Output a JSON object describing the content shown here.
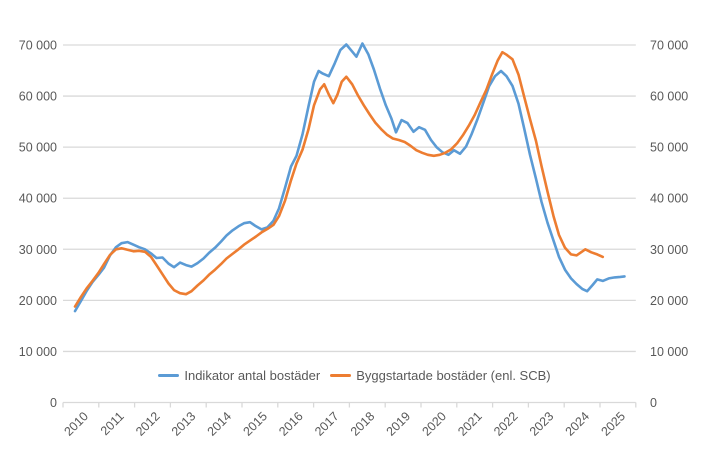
{
  "chart_data": {
    "type": "line",
    "title": "",
    "xlabel": "",
    "ylabel": "",
    "grid": true,
    "legend_position": "bottom",
    "background": "#ffffff",
    "x_axis": {
      "categories": [
        "2010",
        "2011",
        "2012",
        "2013",
        "2014",
        "2015",
        "2016",
        "2017",
        "2018",
        "2019",
        "2020",
        "2021",
        "2022",
        "2023",
        "2024",
        "2025"
      ],
      "label_rotation": -45
    },
    "y_axis": {
      "min": 0,
      "max": 70000,
      "step": 10000,
      "tick_labels": [
        "0",
        "10 000",
        "20 000",
        "30 000",
        "40 000",
        "50 000",
        "60 000",
        "70 000"
      ],
      "sides": [
        "left",
        "right"
      ]
    },
    "series": [
      {
        "name": "Indikator antal bostäder",
        "color": "#5B9BD5",
        "points": [
          [
            2010.0,
            17900
          ],
          [
            2010.17,
            19900
          ],
          [
            2010.33,
            21800
          ],
          [
            2010.5,
            23600
          ],
          [
            2010.67,
            25000
          ],
          [
            2010.83,
            26400
          ],
          [
            2011.0,
            28800
          ],
          [
            2011.17,
            30400
          ],
          [
            2011.33,
            31200
          ],
          [
            2011.5,
            31400
          ],
          [
            2011.67,
            30900
          ],
          [
            2011.83,
            30400
          ],
          [
            2012.0,
            30000
          ],
          [
            2012.17,
            29200
          ],
          [
            2012.33,
            28300
          ],
          [
            2012.5,
            28400
          ],
          [
            2012.67,
            27200
          ],
          [
            2012.83,
            26500
          ],
          [
            2013.0,
            27400
          ],
          [
            2013.17,
            26900
          ],
          [
            2013.33,
            26600
          ],
          [
            2013.5,
            27300
          ],
          [
            2013.67,
            28200
          ],
          [
            2013.83,
            29300
          ],
          [
            2014.0,
            30300
          ],
          [
            2014.17,
            31500
          ],
          [
            2014.33,
            32700
          ],
          [
            2014.5,
            33700
          ],
          [
            2014.67,
            34500
          ],
          [
            2014.83,
            35100
          ],
          [
            2015.0,
            35300
          ],
          [
            2015.17,
            34500
          ],
          [
            2015.33,
            33900
          ],
          [
            2015.5,
            34300
          ],
          [
            2015.67,
            35600
          ],
          [
            2015.83,
            38000
          ],
          [
            2016.0,
            42000
          ],
          [
            2016.17,
            46200
          ],
          [
            2016.33,
            48300
          ],
          [
            2016.5,
            52500
          ],
          [
            2016.67,
            58000
          ],
          [
            2016.83,
            62800
          ],
          [
            2016.96,
            64900
          ],
          [
            2017.08,
            64400
          ],
          [
            2017.25,
            63900
          ],
          [
            2017.42,
            66400
          ],
          [
            2017.58,
            69000
          ],
          [
            2017.75,
            70100
          ],
          [
            2017.92,
            68700
          ],
          [
            2018.04,
            67700
          ],
          [
            2018.21,
            70300
          ],
          [
            2018.38,
            68200
          ],
          [
            2018.54,
            65200
          ],
          [
            2018.71,
            61500
          ],
          [
            2018.88,
            58200
          ],
          [
            2019.04,
            55600
          ],
          [
            2019.17,
            52900
          ],
          [
            2019.33,
            55300
          ],
          [
            2019.5,
            54700
          ],
          [
            2019.67,
            53000
          ],
          [
            2019.83,
            53900
          ],
          [
            2020.0,
            53400
          ],
          [
            2020.17,
            51400
          ],
          [
            2020.33,
            50000
          ],
          [
            2020.5,
            49000
          ],
          [
            2020.67,
            48500
          ],
          [
            2020.83,
            49400
          ],
          [
            2021.0,
            48700
          ],
          [
            2021.17,
            50100
          ],
          [
            2021.33,
            52500
          ],
          [
            2021.5,
            55500
          ],
          [
            2021.67,
            58800
          ],
          [
            2021.83,
            61900
          ],
          [
            2022.0,
            63900
          ],
          [
            2022.17,
            64900
          ],
          [
            2022.33,
            63900
          ],
          [
            2022.5,
            62000
          ],
          [
            2022.67,
            58500
          ],
          [
            2022.83,
            53800
          ],
          [
            2023.0,
            48500
          ],
          [
            2023.17,
            43800
          ],
          [
            2023.33,
            39300
          ],
          [
            2023.5,
            35200
          ],
          [
            2023.67,
            31700
          ],
          [
            2023.83,
            28500
          ],
          [
            2024.0,
            26000
          ],
          [
            2024.17,
            24300
          ],
          [
            2024.33,
            23200
          ],
          [
            2024.5,
            22200
          ],
          [
            2024.63,
            21800
          ],
          [
            2024.79,
            23000
          ],
          [
            2024.92,
            24100
          ],
          [
            2025.08,
            23800
          ],
          [
            2025.25,
            24300
          ],
          [
            2025.42,
            24500
          ],
          [
            2025.58,
            24600
          ],
          [
            2025.7,
            24700
          ]
        ]
      },
      {
        "name": "Byggstartade bostäder (enl. SCB)",
        "color": "#ED7D31",
        "points": [
          [
            2010.0,
            18800
          ],
          [
            2010.17,
            20700
          ],
          [
            2010.33,
            22300
          ],
          [
            2010.5,
            23800
          ],
          [
            2010.67,
            25400
          ],
          [
            2010.83,
            27100
          ],
          [
            2011.0,
            28900
          ],
          [
            2011.17,
            30000
          ],
          [
            2011.33,
            30200
          ],
          [
            2011.5,
            29900
          ],
          [
            2011.67,
            29600
          ],
          [
            2011.83,
            29700
          ],
          [
            2012.0,
            29500
          ],
          [
            2012.17,
            28500
          ],
          [
            2012.33,
            26900
          ],
          [
            2012.5,
            25100
          ],
          [
            2012.67,
            23300
          ],
          [
            2012.83,
            22000
          ],
          [
            2013.0,
            21400
          ],
          [
            2013.17,
            21200
          ],
          [
            2013.33,
            21800
          ],
          [
            2013.5,
            22900
          ],
          [
            2013.67,
            23900
          ],
          [
            2013.83,
            25000
          ],
          [
            2014.0,
            26000
          ],
          [
            2014.17,
            27100
          ],
          [
            2014.33,
            28200
          ],
          [
            2014.5,
            29100
          ],
          [
            2014.67,
            30000
          ],
          [
            2014.83,
            30900
          ],
          [
            2015.0,
            31700
          ],
          [
            2015.17,
            32500
          ],
          [
            2015.33,
            33300
          ],
          [
            2015.5,
            34000
          ],
          [
            2015.67,
            34800
          ],
          [
            2015.83,
            36500
          ],
          [
            2016.0,
            39500
          ],
          [
            2016.17,
            43500
          ],
          [
            2016.33,
            46800
          ],
          [
            2016.5,
            49500
          ],
          [
            2016.67,
            53500
          ],
          [
            2016.83,
            58200
          ],
          [
            2017.0,
            61300
          ],
          [
            2017.12,
            62300
          ],
          [
            2017.25,
            60300
          ],
          [
            2017.38,
            58600
          ],
          [
            2017.5,
            60300
          ],
          [
            2017.62,
            62800
          ],
          [
            2017.75,
            63800
          ],
          [
            2017.92,
            62300
          ],
          [
            2018.08,
            60200
          ],
          [
            2018.25,
            58200
          ],
          [
            2018.42,
            56400
          ],
          [
            2018.58,
            54800
          ],
          [
            2018.75,
            53500
          ],
          [
            2018.92,
            52400
          ],
          [
            2019.08,
            51700
          ],
          [
            2019.25,
            51400
          ],
          [
            2019.42,
            51000
          ],
          [
            2019.58,
            50300
          ],
          [
            2019.75,
            49400
          ],
          [
            2019.92,
            48900
          ],
          [
            2020.08,
            48500
          ],
          [
            2020.25,
            48300
          ],
          [
            2020.42,
            48500
          ],
          [
            2020.58,
            48900
          ],
          [
            2020.75,
            49600
          ],
          [
            2020.92,
            50800
          ],
          [
            2021.08,
            52300
          ],
          [
            2021.25,
            54200
          ],
          [
            2021.42,
            56300
          ],
          [
            2021.58,
            58700
          ],
          [
            2021.75,
            61200
          ],
          [
            2021.92,
            64300
          ],
          [
            2022.08,
            67000
          ],
          [
            2022.21,
            68600
          ],
          [
            2022.33,
            68100
          ],
          [
            2022.5,
            67200
          ],
          [
            2022.67,
            64200
          ],
          [
            2022.83,
            60000
          ],
          [
            2023.0,
            55500
          ],
          [
            2023.17,
            51200
          ],
          [
            2023.33,
            46300
          ],
          [
            2023.5,
            41300
          ],
          [
            2023.67,
            36500
          ],
          [
            2023.83,
            32800
          ],
          [
            2024.0,
            30300
          ],
          [
            2024.17,
            29000
          ],
          [
            2024.33,
            28800
          ],
          [
            2024.5,
            29600
          ],
          [
            2024.58,
            30000
          ],
          [
            2024.75,
            29400
          ],
          [
            2024.92,
            29000
          ],
          [
            2025.08,
            28500
          ]
        ]
      }
    ]
  },
  "colors": {
    "grid": "#D9D9D9",
    "axis": "#D9D9D9",
    "tick_text": "#595959",
    "legend_text": "#595959",
    "background": "#FFFFFF"
  },
  "legend": {
    "items": [
      {
        "label": "Indikator antal bostäder"
      },
      {
        "label": "Byggstartade bostäder (enl. SCB)"
      }
    ]
  }
}
